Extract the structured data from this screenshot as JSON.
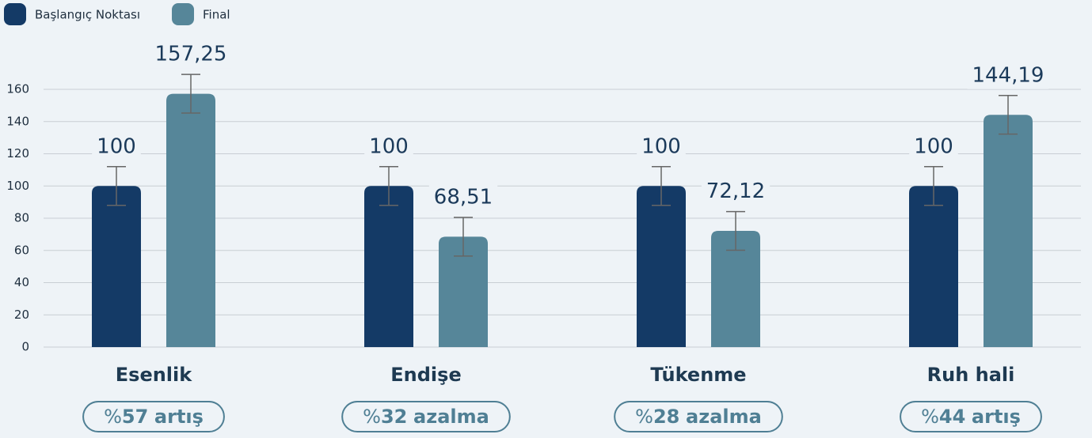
{
  "chart_data": {
    "type": "bar",
    "categories": [
      "Esenlik",
      "Endişe",
      "Tükenme",
      "Ruh hali"
    ],
    "series": [
      {
        "name": "Başlangıç Noktası",
        "color": "#143a66",
        "values": [
          100,
          100,
          100,
          100
        ],
        "value_labels": [
          "100",
          "100",
          "100",
          "100"
        ],
        "errors": [
          12,
          12,
          12,
          12
        ]
      },
      {
        "name": "Final",
        "color": "#568699",
        "values": [
          157.25,
          68.51,
          72.12,
          144.19
        ],
        "value_labels": [
          "157,25",
          "68,51",
          "72,12",
          "144,19"
        ],
        "errors": [
          12,
          12,
          12,
          12
        ]
      }
    ],
    "ylim": [
      0,
      160
    ],
    "yticks": [
      0,
      20,
      40,
      60,
      80,
      100,
      120,
      140,
      160
    ],
    "grid": true,
    "legend": "top-left",
    "annotations": [
      {
        "prefix": "%",
        "number": "57",
        "text": "artış"
      },
      {
        "prefix": "%",
        "number": "32",
        "text": "azalma"
      },
      {
        "prefix": "%",
        "number": "28",
        "text": "azalma"
      },
      {
        "prefix": "%",
        "number": "44",
        "text": "artış"
      }
    ]
  }
}
